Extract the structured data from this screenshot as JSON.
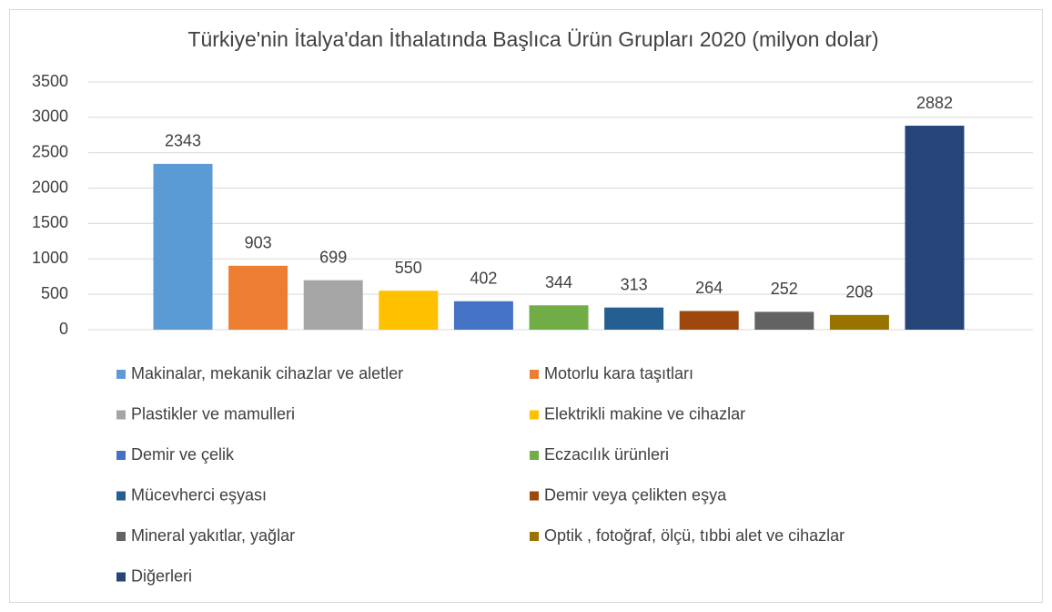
{
  "chart_data": {
    "type": "bar",
    "title": "Türkiye'nin İtalya'dan İthalatında Başlıca Ürün Grupları 2020 (milyon dolar)",
    "ylim": [
      0,
      3500
    ],
    "yticks": [
      0,
      500,
      1000,
      1500,
      2000,
      2500,
      3000,
      3500
    ],
    "grid": true,
    "series": [
      {
        "name": "Makinalar, mekanik cihazlar ve aletler",
        "color": "#5b9bd5",
        "values": [
          2343
        ]
      },
      {
        "name": "Motorlu kara taşıtları",
        "color": "#ed7d31",
        "values": [
          903
        ]
      },
      {
        "name": "Plastikler ve mamulleri",
        "color": "#a5a5a5",
        "values": [
          699
        ]
      },
      {
        "name": "Elektrikli makine ve cihazlar",
        "color": "#ffc000",
        "values": [
          550
        ]
      },
      {
        "name": "Demir ve çelik",
        "color": "#4472c4",
        "values": [
          402
        ]
      },
      {
        "name": "Eczacılık ürünleri",
        "color": "#70ad47",
        "values": [
          344
        ]
      },
      {
        "name": "Mücevherci eşyası",
        "color": "#255e91",
        "values": [
          313
        ]
      },
      {
        "name": "Demir veya çelikten eşya",
        "color": "#9e480e",
        "values": [
          264
        ]
      },
      {
        "name": "Mineral yakıtlar, yağlar",
        "color": "#636363",
        "values": [
          252
        ]
      },
      {
        "name": "Optik , fotoğraf, ölçü, tıbbi alet ve cihazlar",
        "color": "#997300",
        "values": [
          208
        ]
      },
      {
        "name": "Diğerleri",
        "color": "#264478",
        "values": [
          2882
        ]
      }
    ]
  }
}
